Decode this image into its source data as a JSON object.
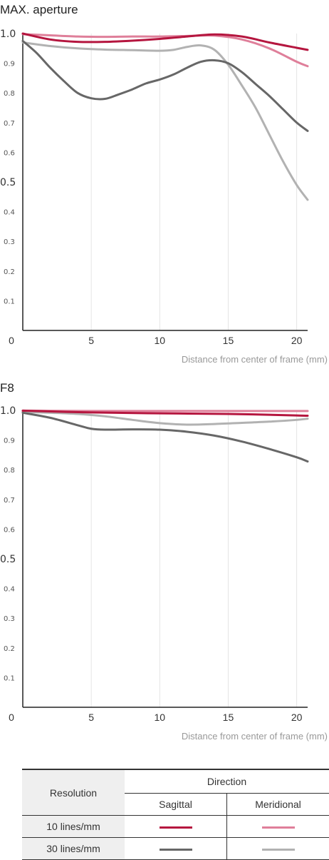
{
  "chart_data": [
    {
      "type": "line",
      "title": "MAX. aperture",
      "xlabel": "Distance from center of frame (mm)",
      "ylabel": "",
      "xlim": [
        0,
        20.8
      ],
      "ylim": [
        0,
        1.0
      ],
      "x_ticks": [
        "0",
        "5",
        "10",
        "15",
        "20"
      ],
      "y_ticks": [
        "1.0",
        "0.9",
        "0.8",
        "0.7",
        "0.6",
        "0.5",
        "0.4",
        "0.3",
        "0.2",
        "0.1"
      ],
      "grid": true,
      "series": [
        {
          "key": "s10",
          "color": "#b5163f",
          "x": [
            0,
            2,
            4,
            6,
            8,
            10,
            12,
            14,
            16,
            18,
            20,
            20.8
          ],
          "values": [
            1.0,
            0.98,
            0.972,
            0.972,
            0.976,
            0.982,
            0.99,
            0.997,
            0.99,
            0.97,
            0.952,
            0.945
          ]
        },
        {
          "key": "m10",
          "color": "#df7f9a",
          "x": [
            0,
            2,
            4,
            6,
            8,
            10,
            12,
            14,
            16,
            18,
            20,
            20.8
          ],
          "values": [
            0.998,
            0.994,
            0.99,
            0.989,
            0.99,
            0.99,
            0.992,
            0.993,
            0.98,
            0.95,
            0.905,
            0.89
          ]
        },
        {
          "key": "s30",
          "color": "#676767",
          "x": [
            0,
            1,
            2,
            3,
            4,
            5,
            6,
            7,
            8,
            9,
            10,
            11,
            12,
            13,
            14,
            15,
            16,
            17,
            18,
            19,
            20,
            20.8
          ],
          "values": [
            0.975,
            0.935,
            0.885,
            0.84,
            0.8,
            0.782,
            0.78,
            0.795,
            0.812,
            0.832,
            0.845,
            0.862,
            0.885,
            0.905,
            0.91,
            0.9,
            0.87,
            0.83,
            0.79,
            0.745,
            0.7,
            0.672
          ]
        },
        {
          "key": "m30",
          "color": "#b2b2b2",
          "x": [
            0,
            2,
            4,
            6,
            8,
            10,
            11,
            12,
            13,
            14,
            15,
            16,
            17,
            18,
            19,
            20,
            20.8
          ],
          "values": [
            0.97,
            0.958,
            0.95,
            0.946,
            0.944,
            0.942,
            0.945,
            0.955,
            0.96,
            0.945,
            0.895,
            0.825,
            0.75,
            0.66,
            0.57,
            0.49,
            0.44
          ]
        }
      ]
    },
    {
      "type": "line",
      "title": "F8",
      "xlabel": "Distance from center of frame (mm)",
      "ylabel": "",
      "xlim": [
        0,
        20.8
      ],
      "ylim": [
        0,
        1.0
      ],
      "x_ticks": [
        "0",
        "5",
        "10",
        "15",
        "20"
      ],
      "y_ticks": [
        "1.0",
        "0.9",
        "0.8",
        "0.7",
        "0.6",
        "0.5",
        "0.4",
        "0.3",
        "0.2",
        "0.1"
      ],
      "grid": true,
      "series": [
        {
          "key": "s10",
          "color": "#b5163f",
          "x": [
            0,
            5,
            10,
            15,
            20,
            20.8
          ],
          "values": [
            0.999,
            0.993,
            0.99,
            0.988,
            0.983,
            0.982
          ]
        },
        {
          "key": "m10",
          "color": "#df7f9a",
          "x": [
            0,
            5,
            10,
            15,
            20,
            20.8
          ],
          "values": [
            0.999,
            0.998,
            0.998,
            0.998,
            0.998,
            0.998
          ]
        },
        {
          "key": "s30",
          "color": "#676767",
          "x": [
            0,
            2,
            4,
            5,
            6,
            8,
            10,
            12,
            14,
            16,
            18,
            20,
            20.8
          ],
          "values": [
            0.992,
            0.975,
            0.95,
            0.938,
            0.935,
            0.936,
            0.935,
            0.928,
            0.915,
            0.895,
            0.87,
            0.842,
            0.828
          ]
        },
        {
          "key": "m30",
          "color": "#b2b2b2",
          "x": [
            0,
            2,
            4,
            6,
            8,
            10,
            12,
            14,
            16,
            18,
            20,
            20.8
          ],
          "values": [
            0.995,
            0.992,
            0.988,
            0.98,
            0.968,
            0.957,
            0.952,
            0.954,
            0.958,
            0.962,
            0.968,
            0.972
          ]
        }
      ]
    }
  ],
  "legend": {
    "resolution_header": "Resolution",
    "direction_header": "Direction",
    "sagittal": "Sagittal",
    "meridional": "Meridional",
    "rows": [
      {
        "label": "10 lines/mm",
        "sagittal_color": "#b5163f",
        "meridional_color": "#df7f9a"
      },
      {
        "label": "30 lines/mm",
        "sagittal_color": "#676767",
        "meridional_color": "#b2b2b2"
      }
    ]
  }
}
